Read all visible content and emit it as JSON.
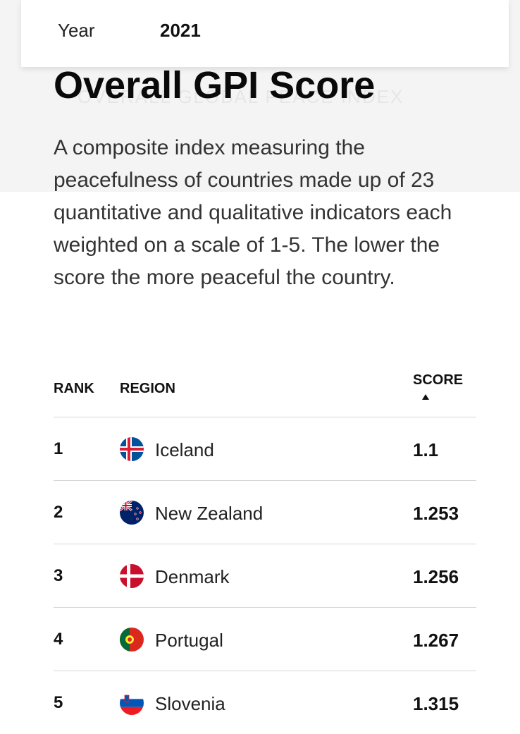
{
  "filter": {
    "year_label": "Year",
    "year_value": "2021"
  },
  "background_text": "OVERALL GLOBAL PEACE INDEX",
  "page": {
    "title": "Overall GPI Score",
    "description": "A composite index measuring the peacefulness of countries made up of 23 quantitative and qualitative indicators each weighted on a scale of 1-5. The lower the score the more peaceful the country."
  },
  "table": {
    "columns": {
      "rank": "RANK",
      "region": "REGION",
      "score": "SCORE"
    },
    "sort": {
      "column": "score",
      "direction": "ascending",
      "icon": "sort-ascending-arrow-icon"
    },
    "rows": [
      {
        "rank": "1",
        "region": "Iceland",
        "score": "1.1",
        "flag_icon": "iceland-flag-icon"
      },
      {
        "rank": "2",
        "region": "New Zealand",
        "score": "1.253",
        "flag_icon": "new-zealand-flag-icon"
      },
      {
        "rank": "3",
        "region": "Denmark",
        "score": "1.256",
        "flag_icon": "denmark-flag-icon"
      },
      {
        "rank": "4",
        "region": "Portugal",
        "score": "1.267",
        "flag_icon": "portugal-flag-icon"
      },
      {
        "rank": "5",
        "region": "Slovenia",
        "score": "1.315",
        "flag_icon": "slovenia-flag-icon"
      }
    ]
  }
}
